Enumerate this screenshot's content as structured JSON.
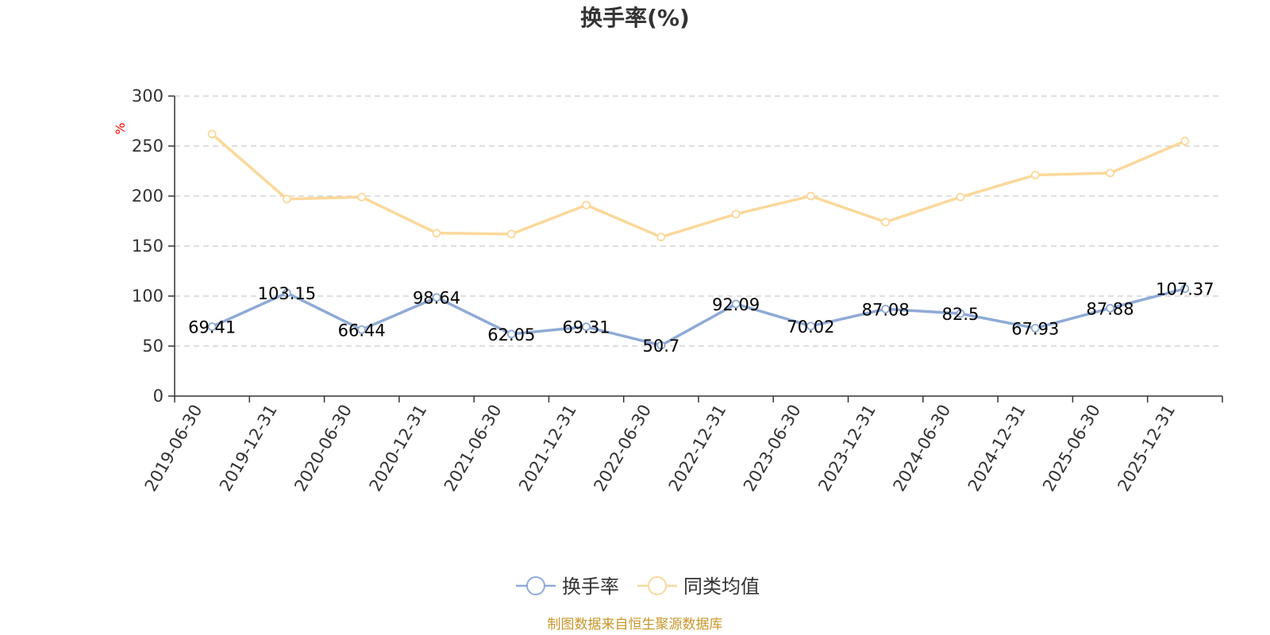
{
  "chart_data": {
    "type": "line",
    "title": "换手率(%)",
    "unit": "%",
    "ylim": [
      0,
      300
    ],
    "yticks": [
      0,
      50,
      100,
      150,
      200,
      250,
      300
    ],
    "grid": true,
    "legend_position": "bottom-center",
    "categories": [
      "2019-06-30",
      "2019-12-31",
      "2020-06-30",
      "2020-12-31",
      "2021-06-30",
      "2021-12-31",
      "2022-06-30",
      "2022-12-31",
      "2023-06-30",
      "2023-12-31",
      "2024-06-30",
      "2024-12-31",
      "2025-06-30",
      "2025-12-31"
    ],
    "series": [
      {
        "name": "换手率",
        "color": "#8eaad6",
        "show_labels": true,
        "values": [
          69.41,
          103.15,
          66.44,
          98.64,
          62.05,
          69.31,
          50.7,
          92.09,
          70.02,
          87.08,
          82.5,
          67.93,
          87.88,
          107.37
        ]
      },
      {
        "name": "同类均值",
        "color": "#fbd89a",
        "show_labels": false,
        "values": [
          262,
          197,
          199,
          163,
          162,
          191,
          159,
          182,
          200,
          174,
          199,
          221,
          223,
          255
        ]
      }
    ]
  },
  "source_text": "制图数据来自恒生聚源数据库"
}
